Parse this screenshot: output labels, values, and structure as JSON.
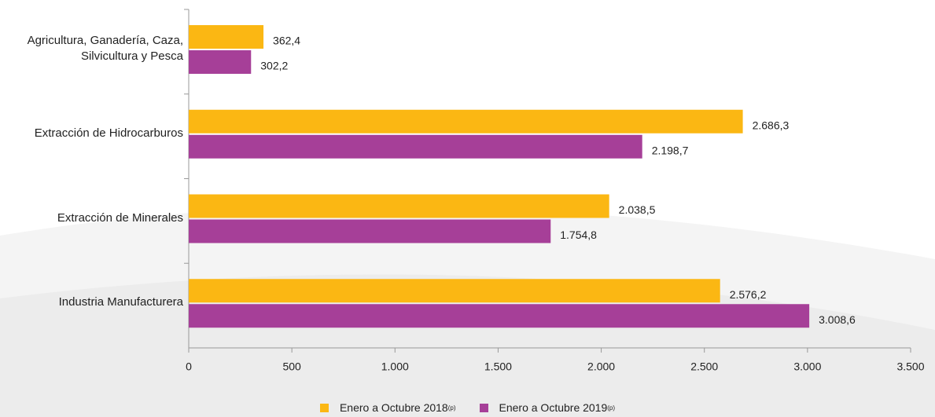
{
  "chart_data": {
    "type": "bar",
    "orientation": "horizontal",
    "categories": [
      "Agricultura, Ganadería, Caza, Silvicultura y Pesca",
      "Extracción de Hidrocarburos",
      "Extracción de Minerales",
      "Industria Manufacturera"
    ],
    "series": [
      {
        "name": "Enero a Octubre 2018",
        "marker": "(p)",
        "color": "#fbb713",
        "values": [
          362.4,
          2686.3,
          2038.5,
          2576.2
        ],
        "value_labels": [
          "362,4",
          "2.686,3",
          "2.038,5",
          "2.576,2"
        ]
      },
      {
        "name": "Enero a Octubre 2019",
        "marker": "(p)",
        "color": "#a63f98",
        "values": [
          302.2,
          2198.7,
          1754.8,
          3008.6
        ],
        "value_labels": [
          "302,2",
          "2.198,7",
          "1.754,8",
          "3.008,6"
        ]
      }
    ],
    "xlim": [
      0,
      3500
    ],
    "xticks": [
      0,
      500,
      {
        "value": 1000,
        "label": "1.000"
      },
      {
        "value": 1500,
        "label": "1.500"
      },
      {
        "value": 2000,
        "label": "2.000"
      },
      {
        "value": 2500,
        "label": "2.500"
      },
      {
        "value": 3000,
        "label": "3.000"
      },
      {
        "value": 3500,
        "label": "3.500"
      }
    ],
    "legend": "bottom"
  }
}
